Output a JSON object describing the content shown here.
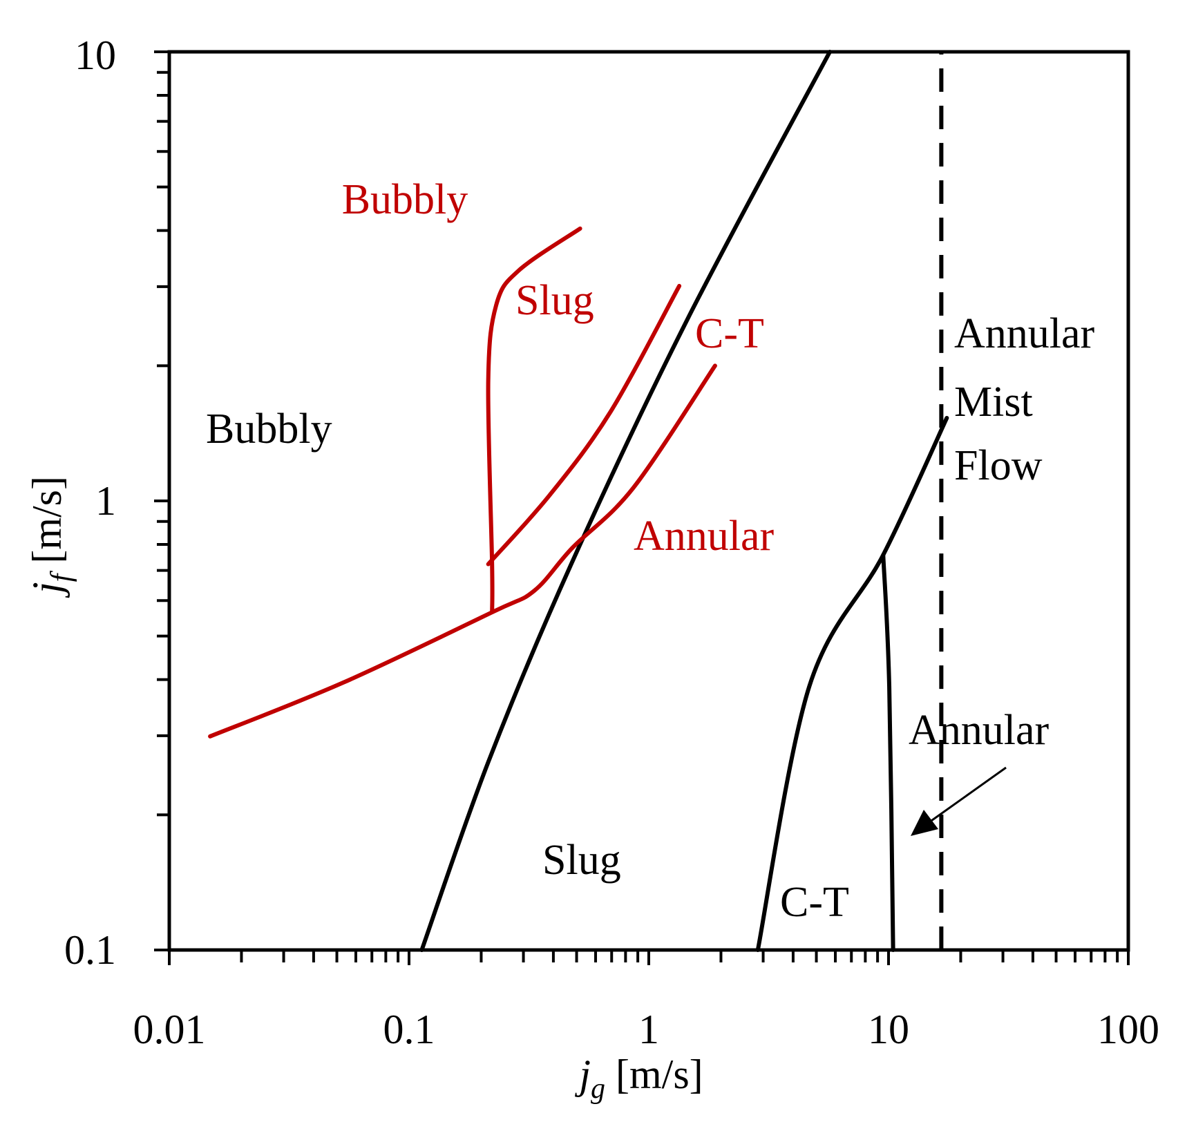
{
  "chart_data": {
    "type": "line",
    "title": "",
    "xlabel": "j_g [m/s]",
    "xlabel_main": "j",
    "xlabel_sub": "g",
    "xlabel_unit": " [m/s]",
    "ylabel": "j_f [m/s]",
    "ylabel_main": "j",
    "ylabel_sub": "f",
    "ylabel_unit": " [m/s]",
    "xscale": "log",
    "yscale": "log",
    "xlim": [
      0.01,
      100
    ],
    "ylim": [
      0.1,
      10
    ],
    "xticks": [
      "0.01",
      "0.1",
      "1",
      "10",
      "100"
    ],
    "yticks": [
      "0.1",
      "1",
      "10"
    ],
    "grid": false,
    "colors": {
      "black": "#000000",
      "red": "#c00000"
    },
    "series": [
      {
        "name": "black-bubbly-slug-boundary",
        "color": "#000000",
        "style": "solid",
        "x": [
          0.113,
          0.214,
          0.473,
          1.44,
          5.69
        ],
        "y": [
          0.1,
          0.262,
          0.72,
          2.52,
          10
        ]
      },
      {
        "name": "black-slug-ct-boundary",
        "color": "#000000",
        "style": "solid",
        "x": [
          2.85,
          4.67,
          9.5,
          17.5
        ],
        "y": [
          0.1,
          0.386,
          0.758,
          1.53
        ]
      },
      {
        "name": "black-ct-annular-boundary",
        "color": "#000000",
        "style": "solid",
        "x": [
          9.5,
          10.07,
          10.45
        ],
        "y": [
          0.758,
          0.386,
          0.1
        ]
      },
      {
        "name": "black-annular-mist-boundary",
        "color": "#000000",
        "style": "dashed",
        "x": [
          16.6,
          16.6
        ],
        "y": [
          0.1,
          10
        ]
      },
      {
        "name": "red-bubbly-lower-annular-boundary",
        "color": "#c00000",
        "style": "solid",
        "x": [
          0.0148,
          0.0532,
          0.222,
          0.333,
          0.481,
          0.863,
          1.89
        ],
        "y": [
          0.299,
          0.394,
          0.565,
          0.631,
          0.787,
          1.07,
          2.0
        ]
      },
      {
        "name": "red-bubbly-slug-boundary",
        "color": "#c00000",
        "style": "solid",
        "x": [
          0.222,
          0.222,
          0.214,
          0.231,
          0.287,
          0.517
        ],
        "y": [
          0.565,
          0.723,
          1.85,
          2.73,
          3.26,
          4.04
        ]
      },
      {
        "name": "red-slug-ct-boundary",
        "color": "#c00000",
        "style": "solid",
        "x": [
          0.214,
          0.386,
          0.693,
          1.34
        ],
        "y": [
          0.723,
          1.03,
          1.58,
          3.01
        ]
      }
    ],
    "annotations": {
      "red_bubbly": "Bubbly",
      "red_slug": "Slug",
      "red_ct": "C-T",
      "red_annular": "Annular",
      "black_bubbly": "Bubbly",
      "black_slug": "Slug",
      "black_ct": "C-T",
      "annular_mist_1": "Annular",
      "annular_mist_2": "Mist",
      "annular_mist_3": "Flow",
      "annular_arrow": "Annular"
    }
  }
}
